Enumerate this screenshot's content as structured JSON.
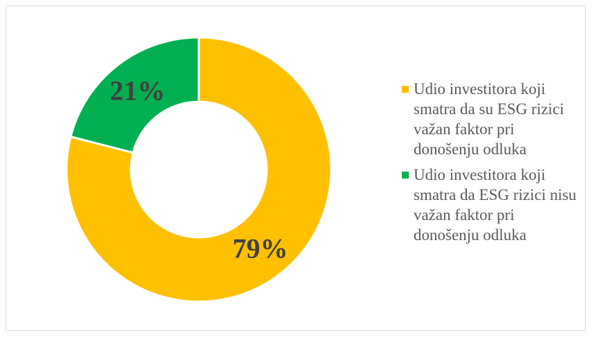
{
  "chart_data": {
    "type": "pie",
    "variant": "donut",
    "title": "",
    "slices": [
      {
        "label": "Udio investitora koji smatra da su ESG rizici važan faktor pri donošenju odluka",
        "value": 79,
        "display": "79%",
        "color": "#FFC000"
      },
      {
        "label": "Udio investitora koji smatra da ESG rizici nisu važan faktor pri donošenju odluka",
        "value": 21,
        "display": "21%",
        "color": "#00B050"
      }
    ],
    "legend_position": "right"
  }
}
